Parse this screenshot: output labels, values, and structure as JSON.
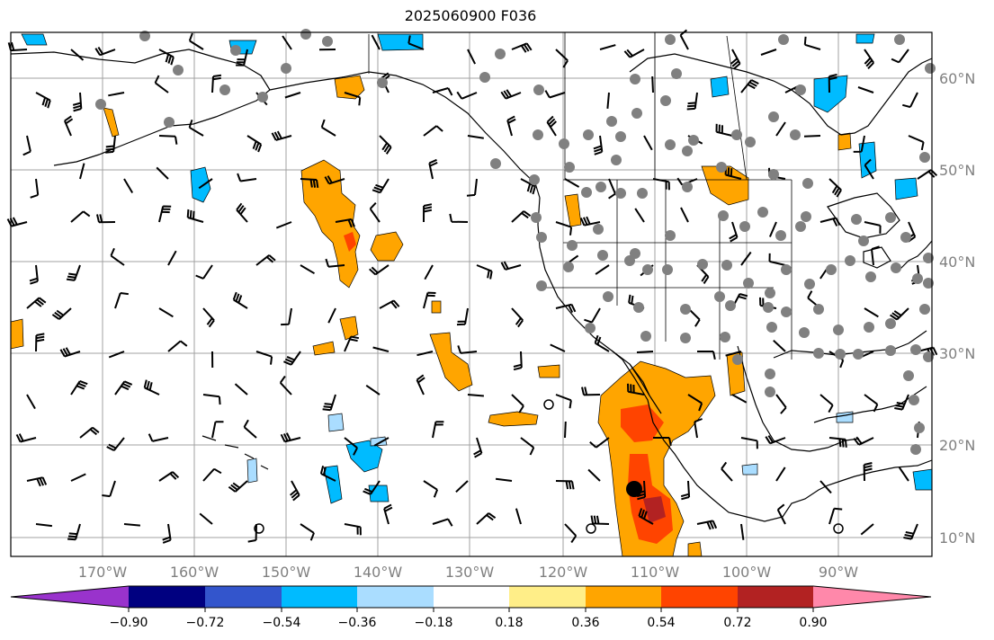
{
  "title": "2025060900 F036",
  "map": {
    "lon_labels": [
      "170°W",
      "160°W",
      "150°W",
      "140°W",
      "130°W",
      "120°W",
      "110°W",
      "100°W",
      "90°W"
    ],
    "lat_labels": [
      "60°N",
      "50°N",
      "40°N",
      "30°N",
      "20°N",
      "10°N"
    ],
    "barb_color": "#000000",
    "station_marker_color": "#808080",
    "coastline_color": "#000000",
    "gridline_color": "#a0a0a0"
  },
  "colorbar": {
    "tick_labels": [
      "−0.90",
      "−0.72",
      "−0.54",
      "−0.36",
      "−0.18",
      "0.18",
      "0.36",
      "0.54",
      "0.72",
      "0.90"
    ],
    "colors": [
      "#9933cc",
      "#000080",
      "#3355cc",
      "#00bbff",
      "#aaddff",
      "#ffffff",
      "#ffee88",
      "#ffa500",
      "#ff4400",
      "#b22222",
      "#ff88aa"
    ]
  }
}
